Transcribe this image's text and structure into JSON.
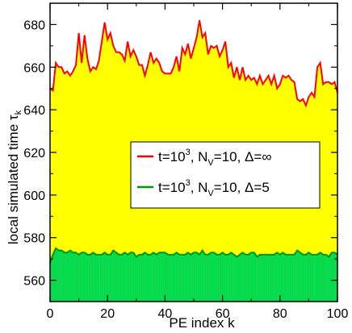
{
  "chart_data": {
    "type": "area",
    "xlabel": "PE index k",
    "ylabel": "local simulated time τ",
    "ylabel_sub": "k",
    "xlim": [
      0,
      100
    ],
    "ylim": [
      550,
      690
    ],
    "xticks": [
      "0",
      "20",
      "40",
      "60",
      "80",
      "100"
    ],
    "yticks": [
      "560",
      "580",
      "600",
      "620",
      "640",
      "660",
      "680"
    ],
    "legend_position": "center-right",
    "grid": false,
    "series": [
      {
        "color": "#ff0000",
        "fill": "#ffff00",
        "legend": {
          "t": "t=10",
          "t_sup": "3",
          "nv": ", N",
          "nv_sub": "V",
          "rest": "=10, Δ=∞"
        },
        "x": [
          0,
          1,
          2,
          3,
          4,
          5,
          6,
          7,
          8,
          9,
          10,
          11,
          12,
          13,
          14,
          15,
          16,
          17,
          18,
          19,
          20,
          21,
          22,
          23,
          24,
          25,
          26,
          27,
          28,
          29,
          30,
          31,
          32,
          33,
          34,
          35,
          36,
          37,
          38,
          39,
          40,
          41,
          42,
          43,
          44,
          45,
          46,
          47,
          48,
          49,
          50,
          51,
          52,
          53,
          54,
          55,
          56,
          57,
          58,
          59,
          60,
          61,
          62,
          63,
          64,
          65,
          66,
          67,
          68,
          69,
          70,
          71,
          72,
          73,
          74,
          75,
          76,
          77,
          78,
          79,
          80,
          81,
          82,
          83,
          84,
          85,
          86,
          87,
          88,
          89,
          90,
          91,
          92,
          93,
          94,
          95,
          96,
          97,
          98,
          99,
          100
        ],
        "values": [
          650,
          649,
          662,
          660,
          660,
          657,
          658,
          656,
          658,
          661,
          676,
          662,
          675,
          664,
          658,
          660,
          659,
          663,
          672,
          681,
          673,
          676,
          670,
          667,
          667,
          666,
          663,
          672,
          665,
          668,
          665,
          661,
          661,
          656,
          661,
          667,
          662,
          664,
          662,
          658,
          657,
          657,
          657,
          660,
          665,
          658,
          669,
          666,
          671,
          664,
          669,
          674,
          682,
          674,
          676,
          666,
          670,
          669,
          670,
          665,
          668,
          672,
          660,
          662,
          655,
          660,
          654,
          660,
          654,
          656,
          654,
          655,
          652,
          656,
          652,
          654,
          656,
          652,
          656,
          650,
          652,
          656,
          655,
          656,
          654,
          653,
          645,
          644,
          645,
          642,
          646,
          648,
          646,
          660,
          662,
          652,
          653,
          653,
          652,
          653,
          648
        ],
        "tick_period": 0
      },
      {
        "color": "#009600",
        "fill": "#00e34f",
        "legend": {
          "t": "t=10",
          "t_sup": "3",
          "nv": ", N",
          "nv_sub": "V",
          "rest": "=10, Δ=5"
        },
        "x": [
          0,
          1,
          2,
          3,
          4,
          5,
          6,
          7,
          8,
          9,
          10,
          11,
          12,
          13,
          14,
          15,
          16,
          17,
          18,
          19,
          20,
          21,
          22,
          23,
          24,
          25,
          26,
          27,
          28,
          29,
          30,
          31,
          32,
          33,
          34,
          35,
          36,
          37,
          38,
          39,
          40,
          41,
          42,
          43,
          44,
          45,
          46,
          47,
          48,
          49,
          50,
          51,
          52,
          53,
          54,
          55,
          56,
          57,
          58,
          59,
          60,
          61,
          62,
          63,
          64,
          65,
          66,
          67,
          68,
          69,
          70,
          71,
          72,
          73,
          74,
          75,
          76,
          77,
          78,
          79,
          80,
          81,
          82,
          83,
          84,
          85,
          86,
          87,
          88,
          89,
          90,
          91,
          92,
          93,
          94,
          95,
          96,
          97,
          98,
          99,
          100
        ],
        "values": [
          568,
          572,
          575,
          574,
          574,
          573,
          573,
          574,
          573,
          573,
          572,
          573,
          573,
          572,
          572,
          573,
          572,
          572,
          572,
          573,
          572,
          572,
          574,
          573,
          572,
          572,
          573,
          572,
          573,
          573,
          571,
          572,
          572,
          573,
          572,
          572,
          573,
          572,
          573,
          573,
          573,
          572,
          572,
          572,
          573,
          572,
          572,
          572,
          573,
          572,
          573,
          573,
          572,
          574,
          572,
          572,
          573,
          573,
          572,
          572,
          573,
          572,
          572,
          573,
          572,
          571,
          572,
          573,
          572,
          572,
          573,
          573,
          571,
          572,
          572,
          572,
          572,
          572,
          572,
          573,
          572,
          573,
          572,
          572,
          572,
          572,
          574,
          573,
          572,
          572,
          573,
          572,
          572,
          572,
          573,
          572,
          572,
          571,
          573,
          573,
          572
        ]
      }
    ]
  }
}
